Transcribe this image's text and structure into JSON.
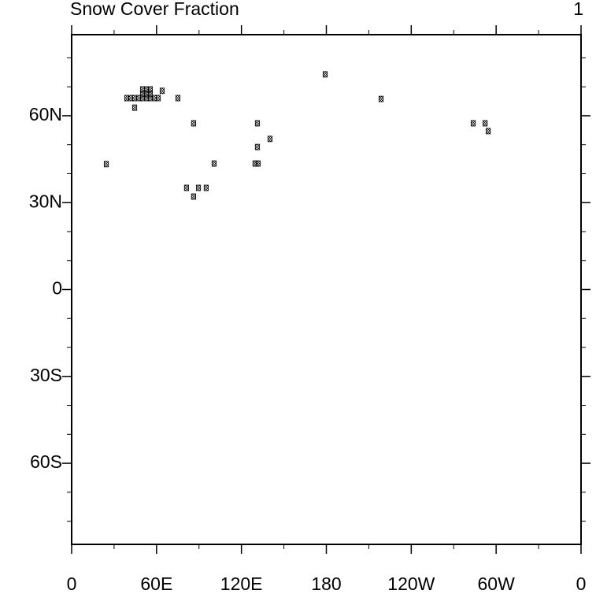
{
  "chart_data": {
    "type": "scatter",
    "title": "Snow Cover Fraction",
    "right_string": "1",
    "color": "#000000",
    "x": [
      24.5,
      39.0,
      41.7,
      44.5,
      47.3,
      50.1,
      52.9,
      55.6,
      58.4,
      61.2,
      50.1,
      52.9,
      55.6,
      50.1,
      52.9,
      55.6,
      64.0,
      44.5,
      75.1,
      86.2,
      100.7,
      81.2,
      89.6,
      95.1,
      86.2,
      129.6,
      131.8,
      131.3,
      131.3,
      140.2,
      179.2,
      218.7,
      283.8,
      292.2,
      294.4
    ],
    "y": [
      43.3,
      66.1,
      66.1,
      66.1,
      66.1,
      66.1,
      66.1,
      66.1,
      66.1,
      66.1,
      69.1,
      69.1,
      69.1,
      67.5,
      67.5,
      67.5,
      68.6,
      62.8,
      66.1,
      57.4,
      43.5,
      35.1,
      35.1,
      35.1,
      32.1,
      43.5,
      43.5,
      57.4,
      49.2,
      52.0,
      74.3,
      65.8,
      57.4,
      57.4,
      54.7
    ],
    "xlim": [
      0,
      360
    ],
    "ylim": [
      -88,
      88
    ],
    "xticks": [
      0,
      {
        "value": 60,
        "label": "60E"
      },
      {
        "value": 120,
        "label": "120E"
      },
      180,
      {
        "value": 240,
        "label": "120W"
      },
      {
        "value": 300,
        "label": "60W"
      },
      {
        "value": 360,
        "label": "0"
      }
    ],
    "yticks": [
      {
        "value": -60,
        "label": "60S"
      },
      {
        "value": -30,
        "label": "30S"
      },
      0,
      {
        "value": 30,
        "label": "30N"
      },
      {
        "value": 60,
        "label": "60N"
      }
    ],
    "xminorticks": [
      30,
      90,
      150,
      210,
      270,
      330
    ],
    "yminorticks": [
      -80,
      -70,
      -50,
      -40,
      -20,
      -10,
      10,
      20,
      40,
      50,
      70,
      80
    ]
  }
}
